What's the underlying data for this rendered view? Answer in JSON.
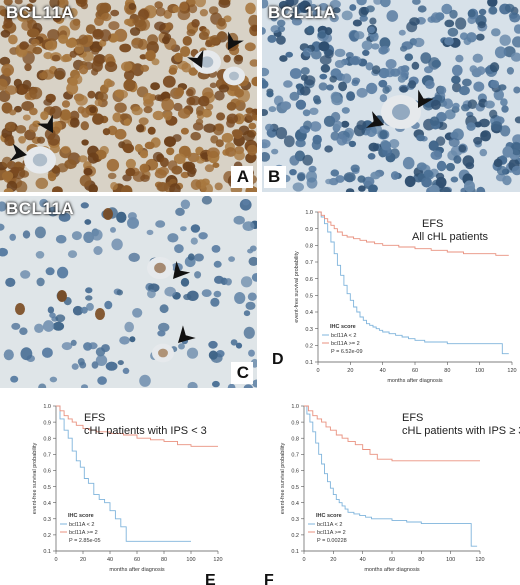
{
  "figure": {
    "panels": [
      {
        "letter": "A",
        "stain_label": "BCL11A"
      },
      {
        "letter": "B",
        "stain_label": "BCL11A"
      },
      {
        "letter": "C",
        "stain_label": "BCL11A"
      },
      {
        "letter": "D"
      },
      {
        "letter": "E"
      },
      {
        "letter": "F"
      }
    ],
    "colors": {
      "nucleus_brown": "#8a5a2a",
      "nucleus_blue": "#4a6f95",
      "background_tissue": "#d8e0e6",
      "line_low": "#7fb4dc",
      "line_high": "#e9917f"
    }
  },
  "chart_data": [
    {
      "panel": "D",
      "type": "line",
      "title": "EFS",
      "subtitle": "All cHL patients",
      "xlabel": "months after diagnosis",
      "ylabel": "event-free survival probability",
      "xlim": [
        0,
        120
      ],
      "ylim": [
        0.1,
        1.0
      ],
      "xticks": [
        "0",
        "20",
        "40",
        "60",
        "80",
        "100",
        "120"
      ],
      "yticks": [
        "1.0",
        "0.9",
        "0.8",
        "0.7",
        "0.6",
        "0.5",
        "0.4",
        "0.3",
        "0.2",
        "0.1"
      ],
      "legend_title": "IHC score",
      "legend_position": "bottom-left",
      "pvalue": "P = 6.52e-09",
      "series": [
        {
          "name": "bcl11A < 2",
          "color": "#7fb4dc",
          "x": [
            0,
            2,
            4,
            6,
            8,
            10,
            12,
            14,
            16,
            18,
            20,
            22,
            24,
            26,
            28,
            30,
            32,
            34,
            36,
            38,
            40,
            44,
            48,
            52,
            56,
            60,
            66,
            72,
            80,
            90,
            100,
            110,
            114,
            118
          ],
          "y": [
            1.0,
            0.97,
            0.93,
            0.88,
            0.82,
            0.75,
            0.68,
            0.62,
            0.56,
            0.51,
            0.47,
            0.43,
            0.4,
            0.37,
            0.35,
            0.33,
            0.32,
            0.31,
            0.3,
            0.29,
            0.28,
            0.27,
            0.26,
            0.25,
            0.24,
            0.23,
            0.22,
            0.22,
            0.21,
            0.21,
            0.21,
            0.21,
            0.15,
            0.15
          ]
        },
        {
          "name": "bcl11A >= 2",
          "color": "#e9917f",
          "x": [
            0,
            2,
            4,
            6,
            8,
            10,
            12,
            15,
            18,
            22,
            26,
            30,
            35,
            40,
            50,
            60,
            70,
            80,
            90,
            100,
            110,
            118
          ],
          "y": [
            1.0,
            0.98,
            0.96,
            0.94,
            0.92,
            0.9,
            0.88,
            0.86,
            0.85,
            0.84,
            0.83,
            0.82,
            0.81,
            0.8,
            0.79,
            0.78,
            0.77,
            0.76,
            0.75,
            0.75,
            0.74,
            0.74
          ]
        }
      ]
    },
    {
      "panel": "E",
      "type": "line",
      "title": "EFS",
      "subtitle": "cHL patients with IPS < 3",
      "xlabel": "months after diagnosis",
      "ylabel": "event-free survival probability",
      "xlim": [
        0,
        120
      ],
      "ylim": [
        0.1,
        1.0
      ],
      "xticks": [
        "0",
        "20",
        "40",
        "60",
        "80",
        "100",
        "120"
      ],
      "yticks": [
        "1.0",
        "0.9",
        "0.8",
        "0.7",
        "0.6",
        "0.5",
        "0.4",
        "0.3",
        "0.2",
        "0.1"
      ],
      "legend_title": "IHC score",
      "legend_position": "bottom-left",
      "pvalue": "P = 2.85e-05",
      "series": [
        {
          "name": "bcl11A < 2",
          "color": "#7fb4dc",
          "x": [
            0,
            3,
            6,
            9,
            12,
            15,
            18,
            21,
            24,
            28,
            32,
            36,
            40,
            44,
            48,
            52,
            56,
            60,
            65,
            70,
            80,
            90,
            100
          ],
          "y": [
            1.0,
            0.92,
            0.85,
            0.8,
            0.72,
            0.66,
            0.62,
            0.55,
            0.52,
            0.45,
            0.42,
            0.4,
            0.35,
            0.3,
            0.25,
            0.16,
            0.16,
            0.16,
            0.16,
            0.16,
            0.16,
            0.16,
            0.16
          ]
        },
        {
          "name": "bcl11A >= 2",
          "color": "#e9917f",
          "x": [
            0,
            3,
            6,
            9,
            12,
            15,
            20,
            25,
            30,
            40,
            50,
            60,
            70,
            80,
            90,
            100,
            110,
            120
          ],
          "y": [
            1.0,
            0.97,
            0.94,
            0.92,
            0.9,
            0.88,
            0.86,
            0.85,
            0.84,
            0.83,
            0.82,
            0.8,
            0.79,
            0.78,
            0.76,
            0.75,
            0.75,
            0.75
          ]
        }
      ]
    },
    {
      "panel": "F",
      "type": "line",
      "title": "EFS",
      "subtitle": "cHL patients with IPS ≥ 3",
      "xlabel": "months after diagnosis",
      "ylabel": "event-free survival probability",
      "xlim": [
        0,
        120
      ],
      "ylim": [
        0.1,
        1.0
      ],
      "xticks": [
        "0",
        "20",
        "40",
        "60",
        "80",
        "100",
        "120"
      ],
      "yticks": [
        "1.0",
        "0.9",
        "0.8",
        "0.7",
        "0.6",
        "0.5",
        "0.4",
        "0.3",
        "0.2",
        "0.1"
      ],
      "legend_title": "IHC score",
      "legend_position": "bottom-left",
      "pvalue": "P = 0.00228",
      "series": [
        {
          "name": "bcl11A < 2",
          "color": "#7fb4dc",
          "x": [
            0,
            2,
            4,
            6,
            8,
            10,
            12,
            14,
            16,
            18,
            20,
            22,
            24,
            26,
            28,
            30,
            34,
            38,
            42,
            46,
            50,
            60,
            70,
            80,
            90,
            100,
            110,
            114,
            118
          ],
          "y": [
            1.0,
            0.95,
            0.9,
            0.84,
            0.77,
            0.7,
            0.64,
            0.58,
            0.53,
            0.49,
            0.45,
            0.42,
            0.4,
            0.38,
            0.36,
            0.34,
            0.33,
            0.32,
            0.31,
            0.3,
            0.3,
            0.29,
            0.28,
            0.27,
            0.27,
            0.27,
            0.27,
            0.13,
            0.13
          ]
        },
        {
          "name": "bcl11A >= 2",
          "color": "#e9917f",
          "x": [
            0,
            3,
            6,
            9,
            12,
            15,
            18,
            22,
            26,
            30,
            35,
            40,
            45,
            50,
            60,
            70,
            80,
            90,
            100,
            110,
            120
          ],
          "y": [
            1.0,
            0.97,
            0.94,
            0.92,
            0.9,
            0.87,
            0.85,
            0.82,
            0.8,
            0.78,
            0.76,
            0.73,
            0.7,
            0.67,
            0.66,
            0.66,
            0.66,
            0.66,
            0.66,
            0.66,
            0.66
          ]
        }
      ]
    }
  ]
}
